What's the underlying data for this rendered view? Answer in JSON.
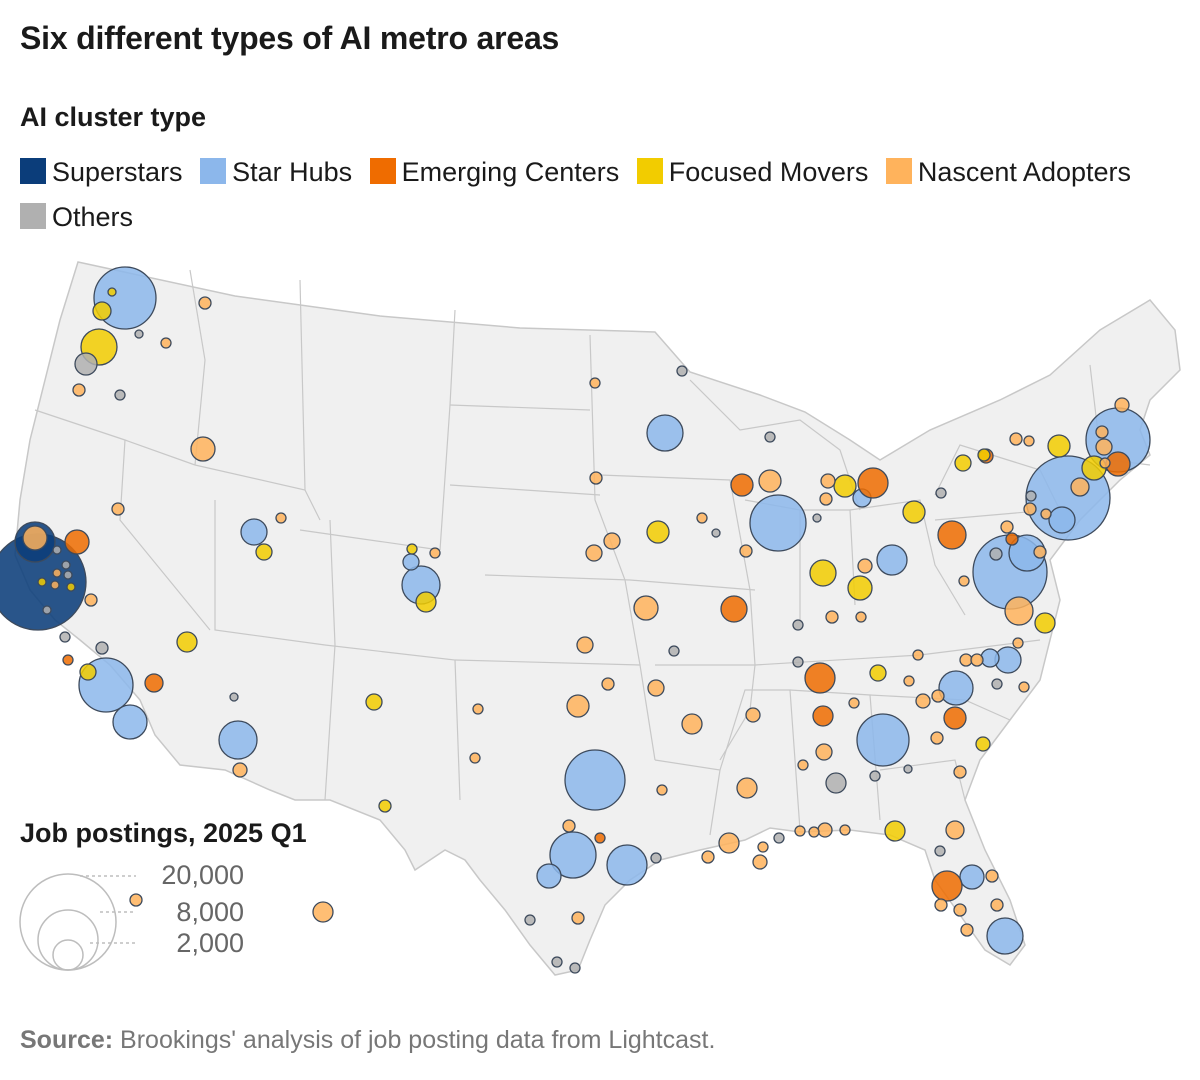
{
  "title": "Six different types of AI metro areas",
  "legend": {
    "title": "AI cluster type",
    "items": [
      {
        "label": "Superstars",
        "color": "#0b3d7a"
      },
      {
        "label": "Star Hubs",
        "color": "#8cb7eb"
      },
      {
        "label": "Emerging Centers",
        "color": "#ef6c00"
      },
      {
        "label": "Focused Movers",
        "color": "#f2cc00"
      },
      {
        "label": "Nascent Adopters",
        "color": "#ffb35c"
      },
      {
        "label": "Others",
        "color": "#b0b0b0"
      }
    ]
  },
  "size_legend": {
    "title": "Job postings, 2025 Q1",
    "levels": [
      {
        "value": 20000,
        "label": "20,000"
      },
      {
        "value": 8000,
        "label": "8,000"
      },
      {
        "value": 2000,
        "label": "2,000"
      }
    ]
  },
  "source": {
    "prefix": "Source:",
    "text": "Brookings' analysis of job posting data from Lightcast."
  }
}
